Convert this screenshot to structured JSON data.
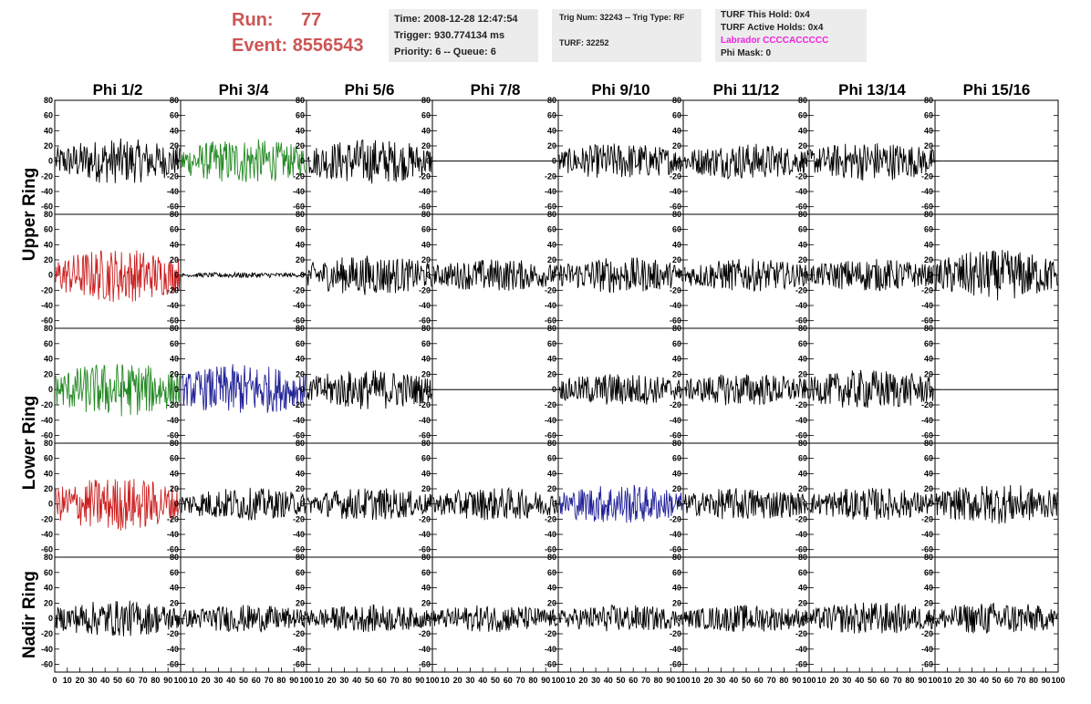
{
  "header": {
    "run_label": "Run:",
    "run_value": "77",
    "event_label": "Event:",
    "event_value": "8556543"
  },
  "info_time": {
    "time": "Time: 2008-12-28 12:47:54",
    "trigger": "Trigger: 930.774134 ms",
    "priority": "Priority: 6 -- Queue: 6"
  },
  "info_trig": {
    "trig": "Trig Num: 32243 -- Trig Type: RF",
    "turf": "TURF: 32252"
  },
  "info_turf": {
    "this_hold": "TURF This Hold: 0x4",
    "active_holds": "TURF Active Holds: 0x4",
    "labrador": "Labrador CCCCACCCCC",
    "phi_mask": "Phi Mask: 0"
  },
  "columns": [
    "Phi 1/2",
    "Phi 3/4",
    "Phi 5/6",
    "Phi 7/8",
    "Phi 9/10",
    "Phi 11/12",
    "Phi 13/14",
    "Phi 15/16"
  ],
  "ring_labels": [
    "Upper Ring",
    "Lower Ring",
    "Nadir Ring"
  ],
  "y_ticks": [
    80,
    60,
    40,
    20,
    0,
    -20,
    -40,
    -60
  ],
  "x_ticks": [
    0,
    10,
    20,
    30,
    40,
    50,
    60,
    70,
    80,
    90,
    100
  ],
  "colors": {
    "trace": "#000000",
    "red": "#cc2222",
    "green": "#228822",
    "blue": "#222299",
    "title_red": "#cc5555",
    "magenta": "#ee22dd"
  },
  "waveform_grid": {
    "rows": [
      {
        "ring": "Upper Ring",
        "colors": [
          "black",
          "green",
          "black",
          "flat",
          "black",
          "black",
          "black",
          "flat"
        ],
        "amplitude": [
          25,
          25,
          25,
          0,
          20,
          20,
          22,
          0
        ]
      },
      {
        "ring": "Upper Ring",
        "colors": [
          "red",
          "black",
          "black",
          "black",
          "black",
          "black",
          "black",
          "black"
        ],
        "amplitude": [
          30,
          3,
          22,
          18,
          20,
          18,
          18,
          28
        ]
      },
      {
        "ring": "Lower Ring",
        "colors": [
          "green",
          "blue",
          "black",
          "flat",
          "black",
          "black",
          "black",
          "flat"
        ],
        "amplitude": [
          30,
          28,
          22,
          0,
          18,
          18,
          22,
          0
        ]
      },
      {
        "ring": "Lower Ring",
        "colors": [
          "red",
          "black",
          "black",
          "black",
          "blue",
          "black",
          "black",
          "black"
        ],
        "amplitude": [
          30,
          18,
          18,
          18,
          22,
          18,
          18,
          22
        ]
      },
      {
        "ring": "Nadir Ring",
        "colors": [
          "black",
          "black",
          "black",
          "black",
          "black",
          "black",
          "black",
          "black"
        ],
        "amplitude": [
          20,
          15,
          15,
          15,
          15,
          15,
          18,
          18
        ]
      }
    ]
  }
}
